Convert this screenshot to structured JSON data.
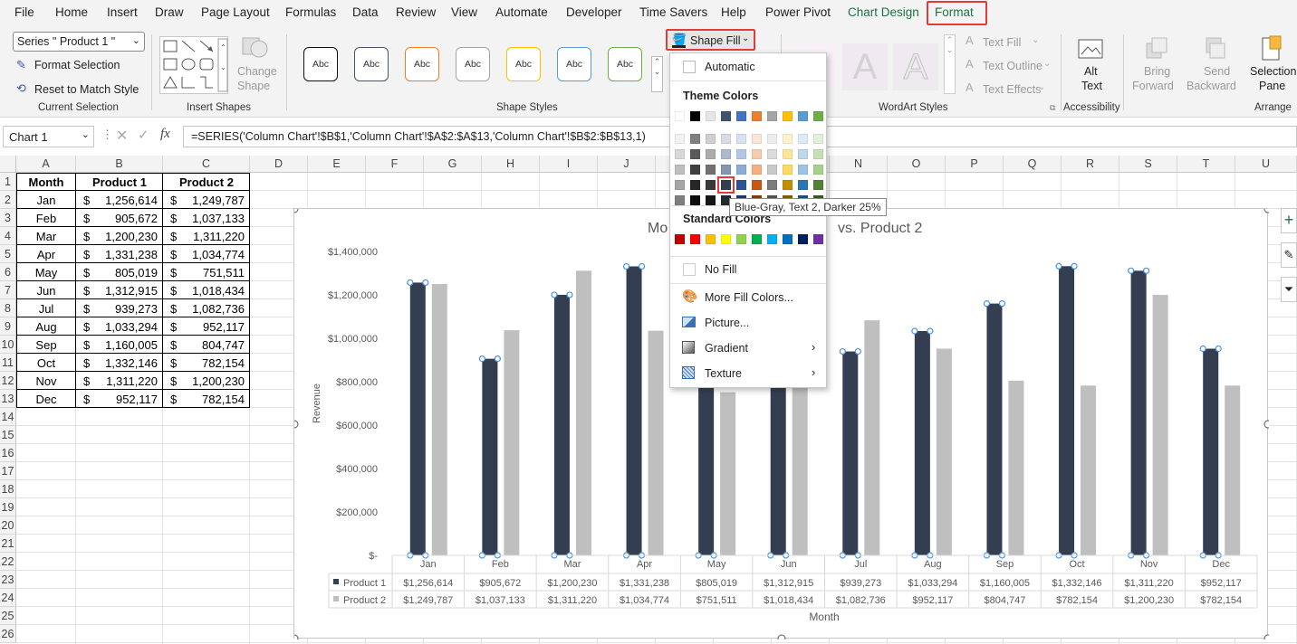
{
  "menu": [
    "File",
    "Home",
    "Insert",
    "Draw",
    "Page Layout",
    "Formulas",
    "Data",
    "Review",
    "View",
    "Automate",
    "Developer",
    "Time Savers",
    "Help",
    "Power Pivot",
    "Chart Design",
    "Format"
  ],
  "ribbon": {
    "series_select": "Series \" Product 1 \"",
    "format_selection": "Format Selection",
    "reset_match": "Reset to Match Style",
    "current_selection": "Current Selection",
    "change_shape_1": "Change",
    "change_shape_2": "Shape",
    "insert_shapes": "Insert Shapes",
    "shape_styles": "Shape Styles",
    "style_label": "Abc",
    "shape_fill": "Shape Fill",
    "wordart_styles": "WordArt Styles",
    "text_fill": "Text Fill",
    "text_outline": "Text Outline",
    "text_effects": "Text Effects",
    "alt_text_1": "Alt",
    "alt_text_2": "Text",
    "accessibility": "Accessibility",
    "bring_forward_1": "Bring",
    "bring_forward_2": "Forward",
    "send_backward_1": "Send",
    "send_backward_2": "Backward",
    "selection_pane_1": "Selection",
    "selection_pane_2": "Pane",
    "arrange": "Arrange",
    "wordart_letter": "A"
  },
  "formula_bar": {
    "name_box": "Chart 1",
    "fx": "fx",
    "formula": "=SERIES('Column Chart'!$B$1,'Column Chart'!$A$2:$A$13,'Column Chart'!$B$2:$B$13,1)"
  },
  "columns": [
    "A",
    "B",
    "C",
    "D",
    "E",
    "F",
    "G",
    "H",
    "I",
    "J",
    "K",
    "L",
    "M",
    "N",
    "O",
    "P",
    "Q",
    "R",
    "S",
    "T",
    "U"
  ],
  "rows": [
    "1",
    "2",
    "3",
    "4",
    "5",
    "6",
    "7",
    "8",
    "9",
    "10",
    "11",
    "12",
    "13",
    "14",
    "15",
    "16",
    "17",
    "18",
    "19",
    "20",
    "21",
    "22",
    "23",
    "24",
    "25",
    "26"
  ],
  "table": {
    "headers": [
      "Month",
      "Product 1",
      "Product 2"
    ],
    "currency": "$",
    "rows": [
      [
        "Jan",
        "1,256,614",
        "1,249,787"
      ],
      [
        "Feb",
        "905,672",
        "1,037,133"
      ],
      [
        "Mar",
        "1,200,230",
        "1,311,220"
      ],
      [
        "Apr",
        "1,331,238",
        "1,034,774"
      ],
      [
        "May",
        "805,019",
        "751,511"
      ],
      [
        "Jun",
        "1,312,915",
        "1,018,434"
      ],
      [
        "Jul",
        "939,273",
        "1,082,736"
      ],
      [
        "Aug",
        "1,033,294",
        "952,117"
      ],
      [
        "Sep",
        "1,160,005",
        "804,747"
      ],
      [
        "Oct",
        "1,332,146",
        "782,154"
      ],
      [
        "Nov",
        "1,311,220",
        "1,200,230"
      ],
      [
        "Dec",
        "952,117",
        "782,154"
      ]
    ]
  },
  "colors": {
    "product1": "#333f50",
    "product2": "#bfbfbf",
    "accent_green": "#1e7145",
    "highlight_red": "#e03c3c",
    "selection_blue": "#4a90e2"
  },
  "chart_data": {
    "type": "bar",
    "title_left": "Mo",
    "title_right": "vs. Product 2",
    "xlabel": "Month",
    "ylabel": "Revenue",
    "ylim": [
      0,
      1400000
    ],
    "yticks": [
      "$-",
      "$200,000",
      "$400,000",
      "$600,000",
      "$800,000",
      "$1,000,000",
      "$1,200,000",
      "$1,400,000"
    ],
    "categories": [
      "Jan",
      "Feb",
      "Mar",
      "Apr",
      "May",
      "Jun",
      "Jul",
      "Aug",
      "Sep",
      "Oct",
      "Nov",
      "Dec"
    ],
    "series": [
      {
        "name": "Product 1",
        "values": [
          1256614,
          905672,
          1200230,
          1331238,
          805019,
          1312915,
          939273,
          1033294,
          1160005,
          1332146,
          1311220,
          952117
        ],
        "labels": [
          "$1,256,614",
          "$905,672",
          "$1,200,230",
          "$1,331,238",
          "$805,019",
          "$1,312,915",
          "$939,273",
          "$1,033,294",
          "$1,160,005",
          "$1,332,146",
          "$1,311,220",
          "$952,117"
        ]
      },
      {
        "name": "Product 2",
        "values": [
          1249787,
          1037133,
          1311220,
          1034774,
          751511,
          1018434,
          1082736,
          952117,
          804747,
          782154,
          1200230,
          782154
        ],
        "labels": [
          "$1,249,787",
          "$1,037,133",
          "$1,311,220",
          "$1,034,774",
          "$751,511",
          "$1,018,434",
          "$1,082,736",
          "$952,117",
          "$804,747",
          "$782,154",
          "$1,200,230",
          "$782,154"
        ]
      }
    ],
    "grid": false,
    "data_table": true
  },
  "dropdown": {
    "automatic": "Automatic",
    "theme_colors": "Theme Colors",
    "standard_colors": "Standard Colors",
    "no_fill": "No Fill",
    "more_fill_colors": "More Fill Colors...",
    "picture": "Picture...",
    "gradient": "Gradient",
    "texture": "Texture",
    "theme_top": [
      "#ffffff",
      "#000000",
      "#e7e6e6",
      "#44546a",
      "#4472c4",
      "#ed7d31",
      "#a5a5a5",
      "#ffc000",
      "#5b9bd5",
      "#70ad47"
    ],
    "theme_shades": [
      [
        "#f2f2f2",
        "#7f7f7f",
        "#d0cece",
        "#d6dce4",
        "#d9e2f3",
        "#fbe5d5",
        "#ededed",
        "#fff2cc",
        "#deebf6",
        "#e2efd9"
      ],
      [
        "#d8d8d8",
        "#595959",
        "#aeabab",
        "#adb9ca",
        "#b4c6e7",
        "#f7cbac",
        "#dbdbdb",
        "#fee599",
        "#bdd7ee",
        "#c5e0b3"
      ],
      [
        "#bfbfbf",
        "#3f3f3f",
        "#757070",
        "#8496b0",
        "#8eaadb",
        "#f4b083",
        "#c9c9c9",
        "#ffd965",
        "#9cc3e5",
        "#a8d08d"
      ],
      [
        "#a5a5a5",
        "#262626",
        "#3a3838",
        "#323f4f",
        "#2f5496",
        "#c45911",
        "#7b7b7b",
        "#bf9000",
        "#2e75b5",
        "#538135"
      ],
      [
        "#7f7f7f",
        "#0c0c0c",
        "#171616",
        "#222a35",
        "#1f3864",
        "#833c0b",
        "#525252",
        "#7f6000",
        "#1e4e79",
        "#375623"
      ]
    ],
    "standard": [
      "#c00000",
      "#ff0000",
      "#ffc000",
      "#ffff00",
      "#92d050",
      "#00b050",
      "#00b0f0",
      "#0070c0",
      "#002060",
      "#7030a0"
    ],
    "tooltip": "Blue-Gray, Text 2, Darker 25%"
  }
}
